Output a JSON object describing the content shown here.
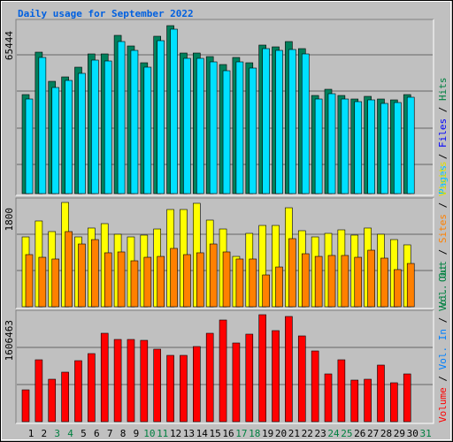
{
  "chart_data": {
    "type": "bar",
    "title": "Daily usage for September 2022",
    "categories": [
      "1",
      "2",
      "3",
      "4",
      "5",
      "6",
      "7",
      "8",
      "9",
      "10",
      "11",
      "12",
      "13",
      "14",
      "15",
      "16",
      "17",
      "18",
      "19",
      "20",
      "21",
      "22",
      "23",
      "24",
      "25",
      "26",
      "27",
      "28",
      "29",
      "30",
      "31"
    ],
    "category_colors": [
      "#000000",
      "#000000",
      "#008040",
      "#008040",
      "#000000",
      "#000000",
      "#000000",
      "#000000",
      "#000000",
      "#008040",
      "#008040",
      "#000000",
      "#000000",
      "#000000",
      "#000000",
      "#000000",
      "#008040",
      "#008040",
      "#000000",
      "#000000",
      "#000000",
      "#000000",
      "#000000",
      "#008040",
      "#008040",
      "#000000",
      "#000000",
      "#000000",
      "#000000",
      "#000000",
      "#008040"
    ],
    "legend_separator": " / ",
    "panels": [
      {
        "type": "bar",
        "ylim": [
          0,
          65444
        ],
        "yticks": [
          65444
        ],
        "legend": [
          {
            "name": "Pages",
            "color": "#00c0ff"
          },
          {
            "name": "Files",
            "color": "#0000ff"
          },
          {
            "name": "Hits",
            "color": "#008040"
          }
        ],
        "series": [
          {
            "color": "#00805c",
            "values": [
              38577,
              55111,
              43744,
              45467,
              49255,
              54422,
              54422,
              61655,
              57522,
              50977,
              61311,
              65444,
              54766,
              54766,
              53389,
              50288,
              53044,
              50977,
              57866,
              57177,
              59244,
              56488,
              38233,
              40644,
              38233,
              36855,
              37889,
              36855,
              36511,
              38577,
              null
            ]
          },
          {
            "color": "#00e0ff",
            "values": [
              36855,
              53044,
              41333,
              44088,
              46844,
              52011,
              51666,
              59244,
              55799,
              49255,
              59588,
              64066,
              52699,
              52699,
              51322,
              47877,
              51322,
              48910,
              56488,
              55799,
              56144,
              54422,
              36855,
              38921,
              36855,
              35822,
              36511,
              35133,
              35477,
              37544,
              null
            ]
          }
        ]
      },
      {
        "type": "bar",
        "ylim": [
          0,
          1800
        ],
        "yticks": [
          1800
        ],
        "legend": [
          {
            "name": "Vol. Out",
            "color": "#008040"
          },
          {
            "name": "Sites",
            "color": "#ff8000"
          },
          {
            "name": "Visits",
            "color": "#e0e000"
          }
        ],
        "series": [
          {
            "color": "#ffff00",
            "values": [
              1205,
              1480,
              1297,
              1800,
              1205,
              1358,
              1434,
              1251,
              1205,
              1236,
              1342,
              1678,
              1678,
              1785,
              1495,
              1342,
              869,
              1266,
              1403,
              1403,
              1708,
              1312,
              1205,
              1266,
              1327,
              1236,
              1358,
              1251,
              1159,
              1068,
              null
            ]
          },
          {
            "color": "#ff8000",
            "values": [
              900,
              854,
              824,
              1297,
              1083,
              1159,
              931,
              946,
              793,
              854,
              869,
              1007,
              900,
              931,
              1083,
              946,
              824,
              824,
              549,
              686,
              1175,
              915,
              869,
              885,
              885,
              854,
              976,
              839,
              641,
              747,
              null
            ]
          }
        ]
      },
      {
        "type": "bar",
        "ylim": [
          0,
          1606463
        ],
        "yticks": [
          1606463
        ],
        "legend": [
          {
            "name": "Volume",
            "color": "#ff0000"
          },
          {
            "name": "Vol. In",
            "color": "#0080ff"
          },
          {
            "name": "Vol. Out",
            "color": "#008040"
          }
        ],
        "series": [
          {
            "color": "#ff0000",
            "values": [
              477955,
              929359,
              637277,
              743490,
              916082,
              1022295,
              1327656,
              1234720,
              1234720,
              1221443,
              1088678,
              995742,
              995742,
              1128508,
              1327656,
              1526805,
              1181613,
              1314379,
              1606463,
              1367486,
              1579910,
              1287826,
              1062126,
              716937,
              929359,
              623999,
              637277,
              849700,
              584168,
              716937,
              null
            ]
          }
        ]
      }
    ]
  }
}
